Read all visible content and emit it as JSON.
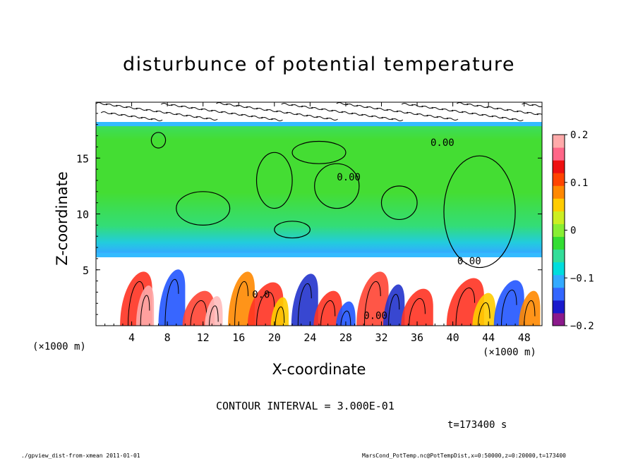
{
  "chart_data": {
    "type": "heatmap",
    "title": "disturbunce of potential temperature",
    "xlabel": "X-coordinate",
    "ylabel": "Z-coordinate",
    "x_unit": "(×1000 m)",
    "x_ticks": [
      4,
      8,
      12,
      16,
      20,
      24,
      28,
      32,
      36,
      40,
      44,
      48
    ],
    "y_ticks": [
      5,
      10,
      15
    ],
    "xlim": [
      0,
      50
    ],
    "ylim": [
      0,
      20
    ],
    "colorbar": {
      "ticks": [
        0.2,
        0.1,
        0,
        -0.1,
        -0.2
      ],
      "tick_labels": [
        "0.2",
        "0.1",
        "0",
        "−0.1",
        "−0.2"
      ],
      "range": [
        -0.2,
        0.2
      ],
      "colors": [
        "#8b1a8b",
        "#1a1acc",
        "#3366ff",
        "#33aaff",
        "#00dddd",
        "#33dd99",
        "#33dd33",
        "#88ee33",
        "#ccee22",
        "#ffcc00",
        "#ff8800",
        "#ff4400",
        "#ee1111",
        "#ff6688",
        "#ffaaaa"
      ]
    },
    "contour_labels": [
      {
        "text": "0.00",
        "x": 37.5,
        "z": 16.1
      },
      {
        "text": "0.00",
        "x": 27.0,
        "z": 13.0
      },
      {
        "text": "0.00",
        "x": 40.5,
        "z": 5.5
      },
      {
        "text": "0.00",
        "x": 30.0,
        "z": 0.6
      },
      {
        "text": "0.0",
        "x": 17.5,
        "z": 2.5
      }
    ],
    "contour_interval_label": "CONTOUR INTERVAL = 3.000E-01",
    "time_label": "t=173400 s"
  },
  "footer": {
    "left": "./gpview_dist-from-xmean  2011-01-01",
    "right": "MarsCond_PotTemp.nc@PotTempDist,x=0:50000,z=0:20000,t=173400"
  }
}
